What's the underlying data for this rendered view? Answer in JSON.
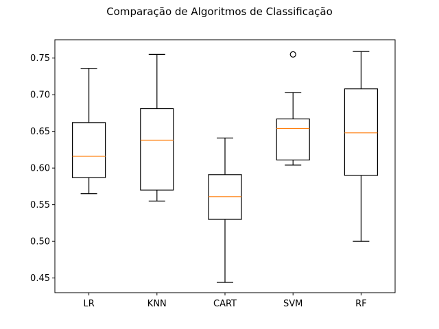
{
  "chart_data": {
    "type": "box",
    "title": "Comparação de Algoritmos de Classificação",
    "xlabel": "",
    "ylabel": "",
    "ylim": [
      0.43,
      0.775
    ],
    "yticks": [
      "0.45",
      "0.50",
      "0.55",
      "0.60",
      "0.65",
      "0.70",
      "0.75"
    ],
    "grid": false,
    "categories": [
      "LR",
      "KNN",
      "CART",
      "SVM",
      "RF"
    ],
    "boxes": [
      {
        "label": "LR",
        "whisker_low": 0.565,
        "q1": 0.587,
        "median": 0.616,
        "q3": 0.662,
        "whisker_high": 0.736,
        "outliers": []
      },
      {
        "label": "KNN",
        "whisker_low": 0.555,
        "q1": 0.57,
        "median": 0.638,
        "q3": 0.681,
        "whisker_high": 0.755,
        "outliers": []
      },
      {
        "label": "CART",
        "whisker_low": 0.444,
        "q1": 0.53,
        "median": 0.561,
        "q3": 0.591,
        "whisker_high": 0.641,
        "outliers": []
      },
      {
        "label": "SVM",
        "whisker_low": 0.604,
        "q1": 0.611,
        "median": 0.654,
        "q3": 0.667,
        "whisker_high": 0.703,
        "outliers": [
          0.755
        ]
      },
      {
        "label": "RF",
        "whisker_low": 0.5,
        "q1": 0.59,
        "median": 0.648,
        "q3": 0.708,
        "whisker_high": 0.759,
        "outliers": []
      }
    ],
    "colors": {
      "box": "#000000",
      "median": "#ff7f0e"
    }
  }
}
